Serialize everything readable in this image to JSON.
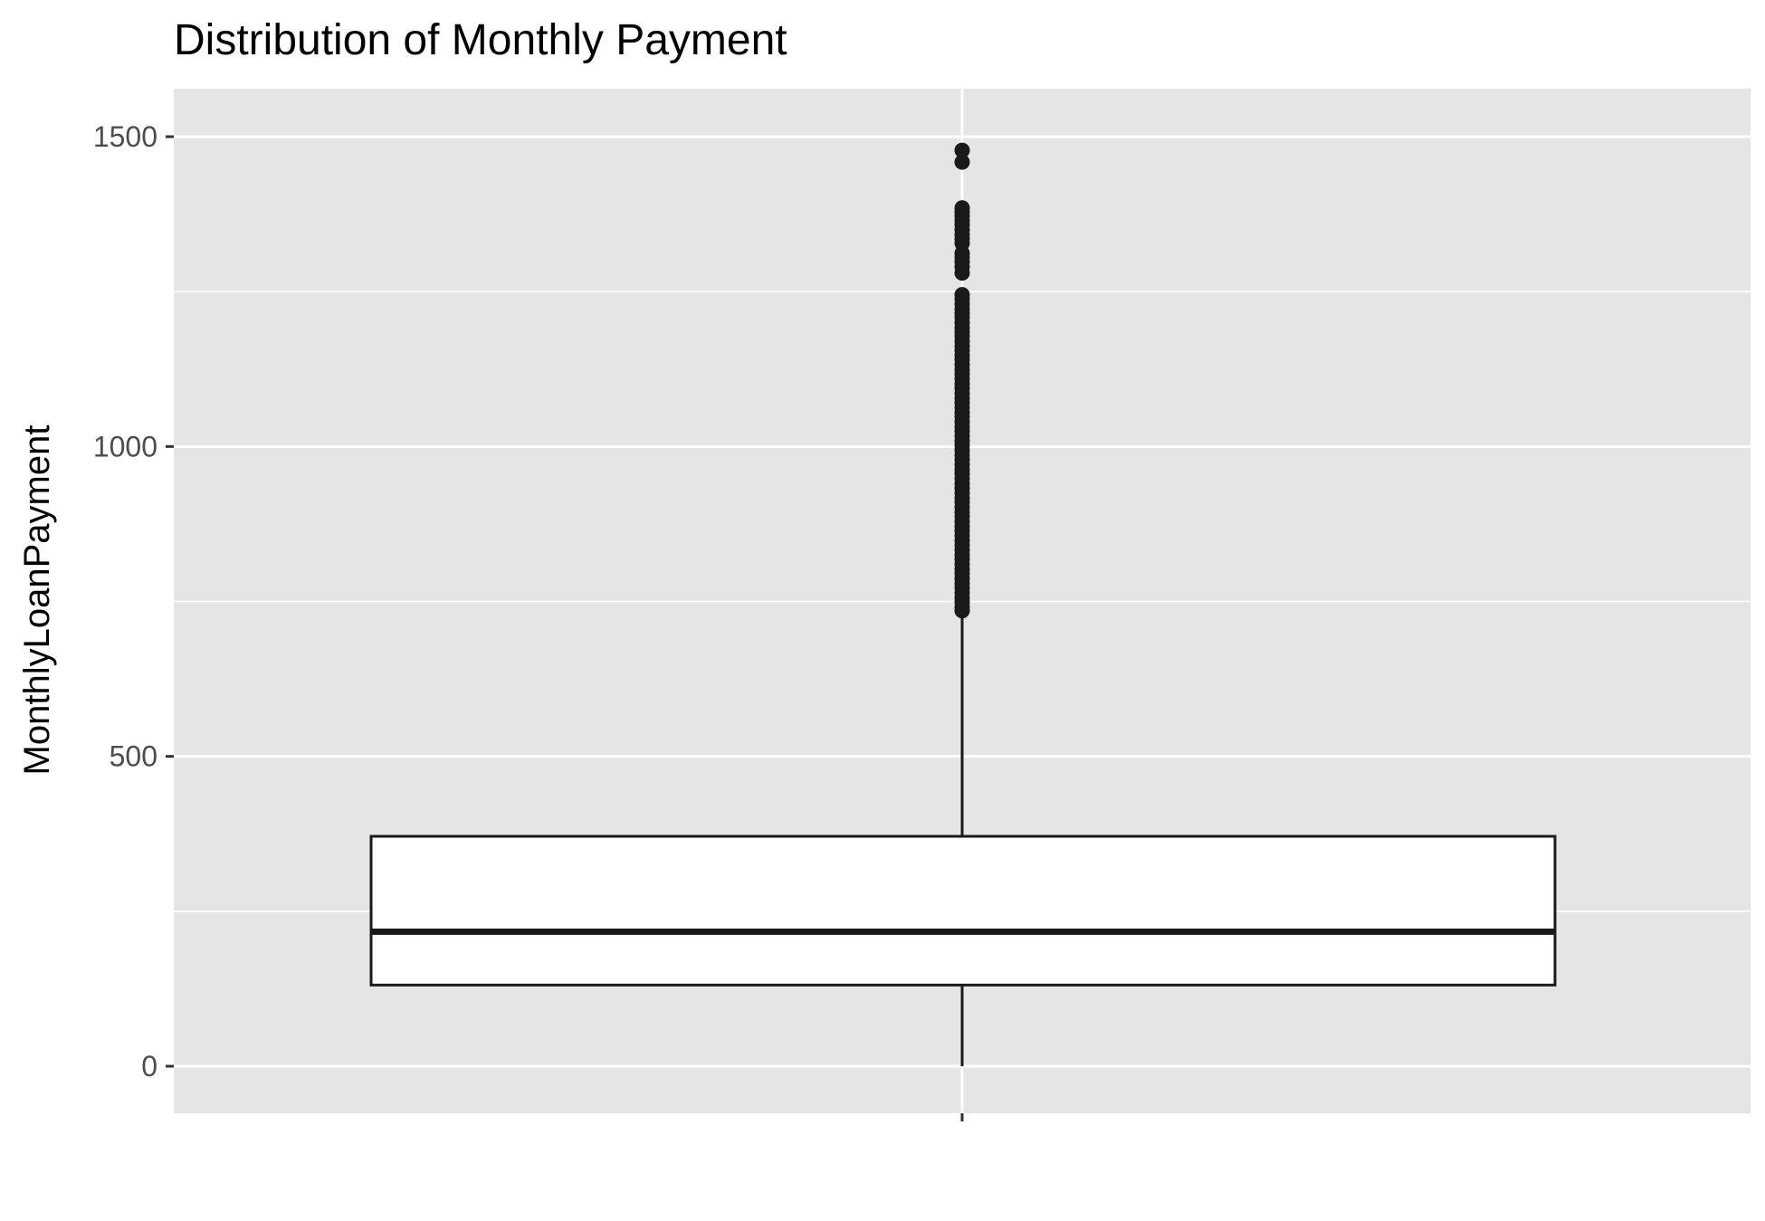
{
  "chart_data": {
    "type": "boxplot",
    "title": "Distribution of Monthly Payment",
    "xlabel": "",
    "ylabel": "MonthlyLoanPayment",
    "ylim": [
      -75,
      1575
    ],
    "y_ticks": [
      0,
      500,
      1000,
      1500
    ],
    "y_tick_labels": [
      "0",
      "500",
      "1000",
      "1500"
    ],
    "y_minor_ticks": [
      250,
      750,
      1250
    ],
    "grid": true,
    "legend": "none",
    "box": {
      "min": 0,
      "q1": 131,
      "median": 217,
      "q3": 371,
      "whisker_high": 729
    },
    "outliers": [
      1478,
      1459,
      1385,
      1378,
      1372,
      1365,
      1358,
      1350,
      1342,
      1335,
      1328,
      1312,
      1305,
      1298,
      1290,
      1280,
      1245,
      1238,
      1230,
      1222,
      1215,
      1208,
      1200,
      1192,
      1185,
      1178,
      1170,
      1162,
      1155,
      1147,
      1140,
      1132,
      1124,
      1117,
      1109,
      1101,
      1094,
      1086,
      1078,
      1071,
      1063,
      1055,
      1048,
      1040,
      1032,
      1025,
      1017,
      1009,
      1002,
      994,
      986,
      979,
      971,
      963,
      956,
      948,
      940,
      933,
      925,
      917,
      910,
      902,
      894,
      887,
      879,
      871,
      864,
      856,
      848,
      841,
      833,
      825,
      818,
      810,
      802,
      795,
      787,
      779,
      772,
      764,
      756,
      749,
      741,
      735
    ],
    "colors": {
      "panel_background": "#e5e5e5",
      "grid": "#ffffff",
      "box_fill": "#ffffff",
      "box_line": "#1a1a1a",
      "outlier": "#1a1a1a",
      "tick_text": "#4d4d4d",
      "tick_mark": "#333333"
    }
  }
}
